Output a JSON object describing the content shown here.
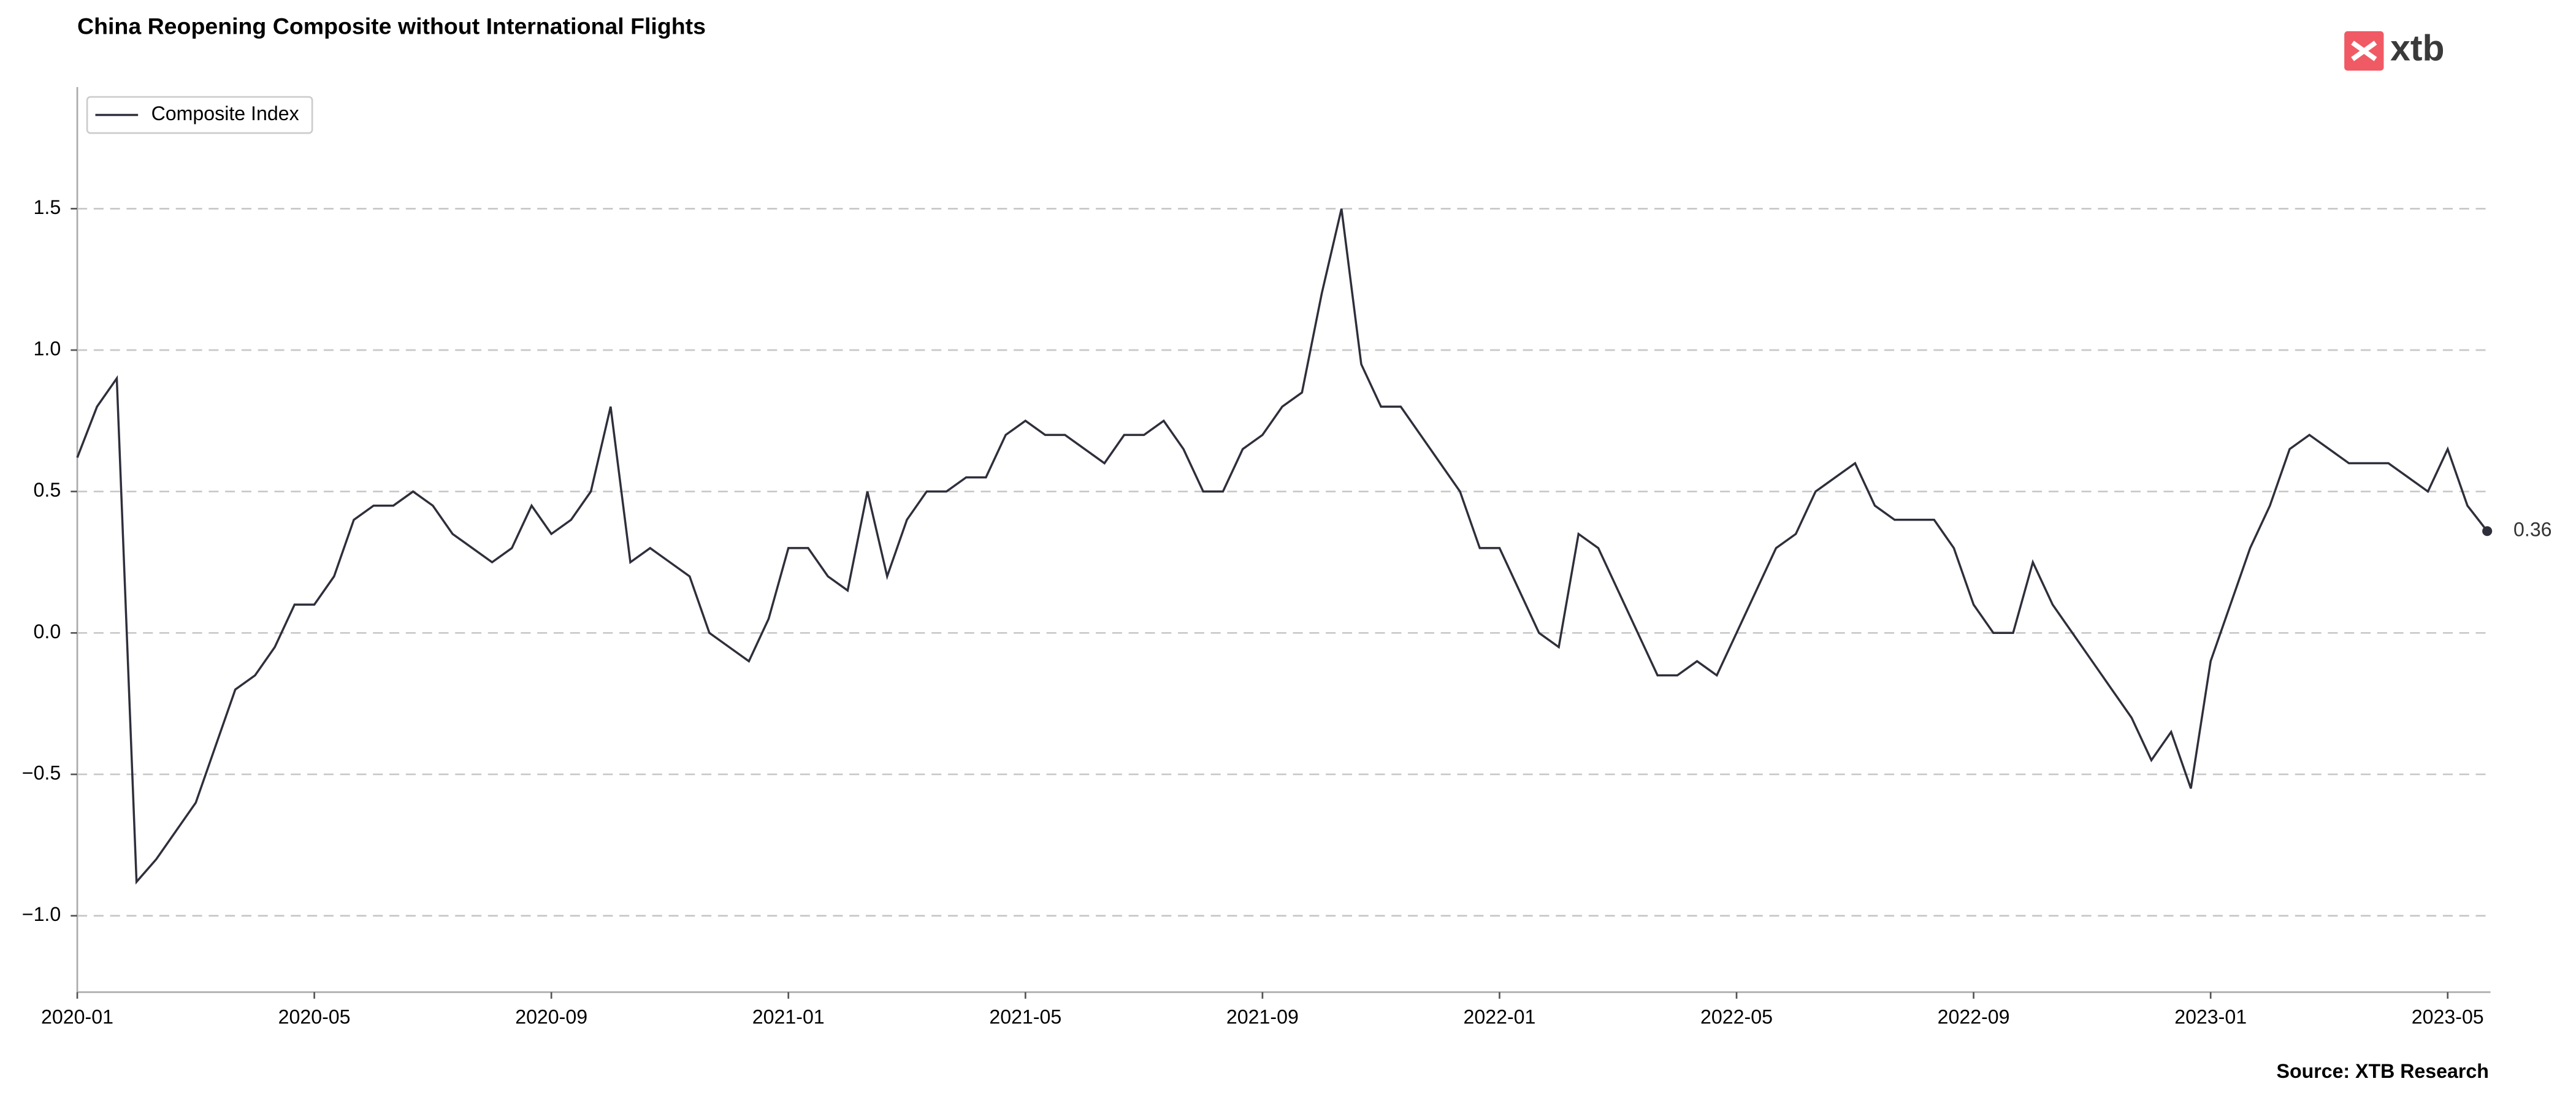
{
  "chart_data": {
    "type": "line",
    "title": "China Reopening Composite without International Flights",
    "source": "Source: XTB Research",
    "logo": "xtb",
    "legend": "upper left",
    "grid": true,
    "x": [
      "2020-01",
      "2020-01",
      "2020-01",
      "2020-02",
      "2020-02",
      "2020-02",
      "2020-03",
      "2020-03",
      "2020-03",
      "2020-04",
      "2020-04",
      "2020-04",
      "2020-05",
      "2020-05",
      "2020-05",
      "2020-06",
      "2020-06",
      "2020-06",
      "2020-07",
      "2020-07",
      "2020-07",
      "2020-08",
      "2020-08",
      "2020-08",
      "2020-09",
      "2020-09",
      "2020-09",
      "2020-10",
      "2020-10",
      "2020-10",
      "2020-11",
      "2020-11",
      "2020-11",
      "2020-12",
      "2020-12",
      "2020-12",
      "2021-01",
      "2021-01",
      "2021-01",
      "2021-02",
      "2021-02",
      "2021-02",
      "2021-03",
      "2021-03",
      "2021-03",
      "2021-04",
      "2021-04",
      "2021-04",
      "2021-05",
      "2021-05",
      "2021-05",
      "2021-06",
      "2021-06",
      "2021-06",
      "2021-07",
      "2021-07",
      "2021-07",
      "2021-08",
      "2021-08",
      "2021-08",
      "2021-09",
      "2021-09",
      "2021-09",
      "2021-10",
      "2021-10",
      "2021-10",
      "2021-11",
      "2021-11",
      "2021-11",
      "2021-12",
      "2021-12",
      "2021-12",
      "2022-01",
      "2022-01",
      "2022-01",
      "2022-02",
      "2022-02",
      "2022-02",
      "2022-03",
      "2022-03",
      "2022-03",
      "2022-04",
      "2022-04",
      "2022-04",
      "2022-05",
      "2022-05",
      "2022-05",
      "2022-06",
      "2022-06",
      "2022-06",
      "2022-07",
      "2022-07",
      "2022-07",
      "2022-08",
      "2022-08",
      "2022-08",
      "2022-09",
      "2022-09",
      "2022-09",
      "2022-10",
      "2022-10",
      "2022-10",
      "2022-11",
      "2022-11",
      "2022-11",
      "2022-12",
      "2022-12",
      "2022-12",
      "2023-01",
      "2023-01",
      "2023-01",
      "2023-02",
      "2023-02",
      "2023-02",
      "2023-03",
      "2023-03",
      "2023-03",
      "2023-04",
      "2023-04",
      "2023-04",
      "2023-05",
      "2023-05",
      "2023-05"
    ],
    "series": [
      {
        "name": "Composite Index",
        "color": "#2e2f3b",
        "values": [
          0.62,
          0.8,
          0.9,
          -0.88,
          -0.8,
          -0.7,
          -0.6,
          -0.4,
          -0.2,
          -0.15,
          -0.05,
          0.1,
          0.1,
          0.2,
          0.4,
          0.45,
          0.45,
          0.5,
          0.45,
          0.35,
          0.3,
          0.25,
          0.3,
          0.45,
          0.35,
          0.4,
          0.5,
          0.8,
          0.25,
          0.3,
          0.25,
          0.2,
          0.0,
          -0.05,
          -0.1,
          0.05,
          0.3,
          0.3,
          0.2,
          0.15,
          0.5,
          0.2,
          0.4,
          0.5,
          0.5,
          0.55,
          0.55,
          0.7,
          0.75,
          0.7,
          0.7,
          0.65,
          0.6,
          0.7,
          0.7,
          0.75,
          0.65,
          0.5,
          0.5,
          0.65,
          0.7,
          0.8,
          0.85,
          1.2,
          1.5,
          0.95,
          0.8,
          0.8,
          0.7,
          0.6,
          0.5,
          0.3,
          0.3,
          0.15,
          0.0,
          -0.05,
          0.35,
          0.3,
          0.15,
          0.0,
          -0.15,
          -0.15,
          -0.1,
          -0.15,
          0.0,
          0.15,
          0.3,
          0.35,
          0.5,
          0.55,
          0.6,
          0.45,
          0.4,
          0.4,
          0.4,
          0.3,
          0.1,
          0.0,
          0.0,
          0.25,
          0.1,
          0.0,
          -0.1,
          -0.2,
          -0.3,
          -0.45,
          -0.35,
          -0.55,
          -0.1,
          0.1,
          0.3,
          0.45,
          0.65,
          0.7,
          0.65,
          0.6,
          0.6,
          0.6,
          0.55,
          0.5,
          0.65,
          0.45,
          0.36
        ]
      }
    ],
    "xlim": [
      "2020-01",
      "2023-06"
    ],
    "xticks": [
      "2020-01",
      "2020-05",
      "2020-09",
      "2021-01",
      "2021-05",
      "2021-09",
      "2022-01",
      "2022-05",
      "2022-09",
      "2023-01",
      "2023-05"
    ],
    "ylim": [
      -1.27,
      1.93
    ],
    "yticks": [
      {
        "value": -1,
        "label": "−1.0"
      },
      {
        "value": -0.5,
        "label": "−0.5"
      },
      {
        "value": 0,
        "label": "0.0"
      },
      {
        "value": 0.5,
        "label": "0.5"
      },
      {
        "value": 1,
        "label": "1.0"
      },
      {
        "value": 1.5,
        "label": "1.5"
      }
    ]
  }
}
